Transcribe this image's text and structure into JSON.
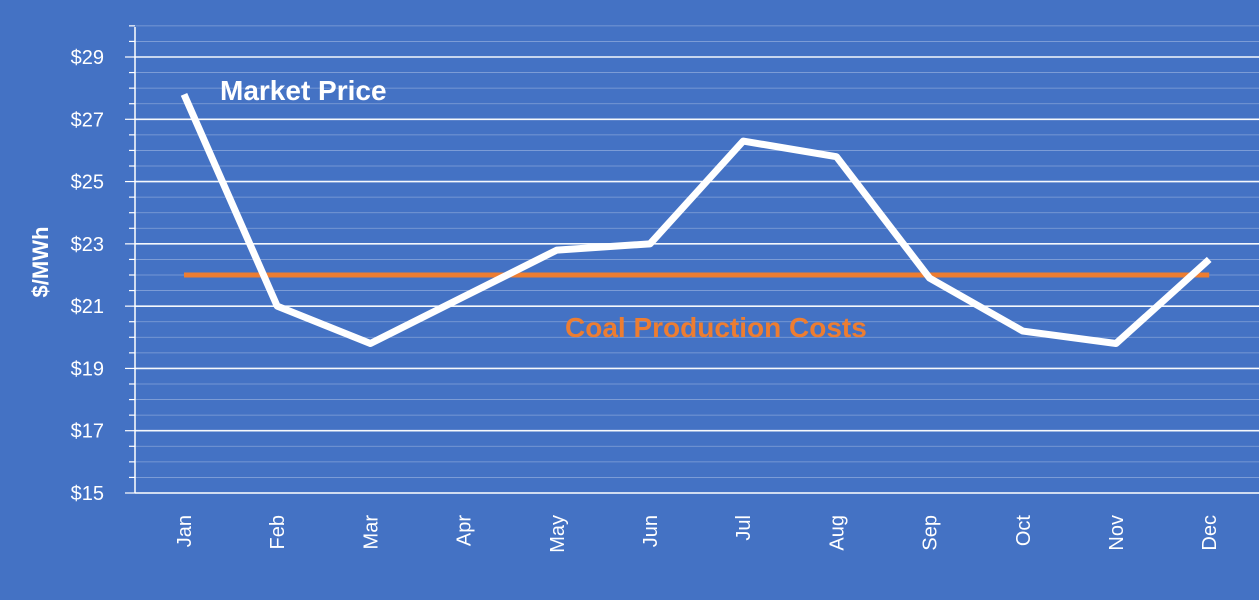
{
  "chart_data": {
    "type": "line",
    "title": "",
    "xlabel": "",
    "ylabel": "$/MWh",
    "ylim": [
      15,
      30
    ],
    "y_ticks": [
      15,
      17,
      19,
      21,
      23,
      25,
      27,
      29
    ],
    "y_tick_labels": [
      "$15",
      "$17",
      "$19",
      "$21",
      "$23",
      "$25",
      "$27",
      "$29"
    ],
    "categories": [
      "Jan",
      "Feb",
      "Mar",
      "Apr",
      "May",
      "Jun",
      "Jul",
      "Aug",
      "Sep",
      "Oct",
      "Nov",
      "Dec"
    ],
    "series": [
      {
        "name": "Market Price",
        "color": "#FFFFFF",
        "values": [
          27.8,
          21.0,
          19.8,
          21.3,
          22.8,
          23.0,
          26.3,
          25.8,
          21.9,
          20.2,
          19.8,
          22.5
        ]
      },
      {
        "name": "Coal Production Costs",
        "color": "#ED7D31",
        "values": [
          22.0,
          22.0,
          22.0,
          22.0,
          22.0,
          22.0,
          22.0,
          22.0,
          22.0,
          22.0,
          22.0,
          22.0
        ]
      }
    ],
    "grid": true,
    "legend": "none"
  },
  "colors": {
    "background": "#4472C4",
    "gridline": "#FFFFFF",
    "axis": "#FFFFFF"
  }
}
